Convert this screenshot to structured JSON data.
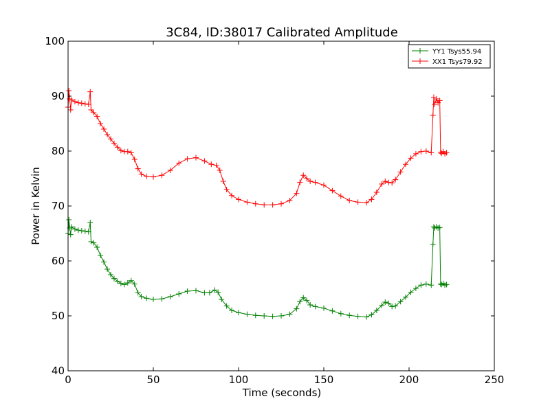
{
  "chart_data": {
    "type": "line",
    "title": "3C84, ID:38017 Calibrated Amplitude",
    "xlabel": "Time (seconds)",
    "ylabel": "Power in Kelvin",
    "xlim": [
      0,
      250
    ],
    "ylim": [
      40,
      100
    ],
    "xticks": [
      "0",
      "50",
      "100",
      "150",
      "200",
      "250"
    ],
    "yticks": [
      "40",
      "50",
      "60",
      "70",
      "80",
      "90",
      "100"
    ],
    "grid": false,
    "legend_position": "top-right",
    "marker": "+",
    "series": [
      {
        "name": "YY1 Tsys55.94",
        "color": "#008000",
        "points": [
          [
            0,
            65.0
          ],
          [
            0.5,
            67.5
          ],
          [
            1,
            66.0
          ],
          [
            1.5,
            64.8
          ],
          [
            2,
            66.2
          ],
          [
            4,
            65.8
          ],
          [
            6,
            65.6
          ],
          [
            8,
            65.5
          ],
          [
            10,
            65.4
          ],
          [
            12,
            65.3
          ],
          [
            13,
            67.0
          ],
          [
            13.5,
            63.5
          ],
          [
            15,
            63.3
          ],
          [
            17,
            62.5
          ],
          [
            19,
            61.0
          ],
          [
            21,
            59.8
          ],
          [
            23,
            58.5
          ],
          [
            25,
            57.5
          ],
          [
            27,
            56.8
          ],
          [
            29,
            56.3
          ],
          [
            31,
            55.9
          ],
          [
            33,
            55.7
          ],
          [
            35,
            56.0
          ],
          [
            37,
            56.4
          ],
          [
            39,
            55.8
          ],
          [
            41,
            54.2
          ],
          [
            43,
            53.5
          ],
          [
            46,
            53.2
          ],
          [
            50,
            53.0
          ],
          [
            55,
            53.1
          ],
          [
            60,
            53.5
          ],
          [
            65,
            54.0
          ],
          [
            70,
            54.5
          ],
          [
            75,
            54.6
          ],
          [
            80,
            54.2
          ],
          [
            83,
            54.2
          ],
          [
            86,
            54.7
          ],
          [
            88,
            54.3
          ],
          [
            90,
            53.0
          ],
          [
            93,
            51.8
          ],
          [
            96,
            51.0
          ],
          [
            100,
            50.6
          ],
          [
            105,
            50.3
          ],
          [
            110,
            50.1
          ],
          [
            115,
            50.0
          ],
          [
            120,
            49.9
          ],
          [
            125,
            50.0
          ],
          [
            130,
            50.3
          ],
          [
            134,
            51.3
          ],
          [
            136,
            52.6
          ],
          [
            138,
            53.3
          ],
          [
            140,
            52.8
          ],
          [
            142,
            52.0
          ],
          [
            145,
            51.7
          ],
          [
            150,
            51.4
          ],
          [
            155,
            50.9
          ],
          [
            160,
            50.4
          ],
          [
            165,
            50.1
          ],
          [
            170,
            49.9
          ],
          [
            175,
            49.8
          ],
          [
            178,
            50.2
          ],
          [
            181,
            51.0
          ],
          [
            184,
            51.9
          ],
          [
            186,
            52.5
          ],
          [
            188,
            52.3
          ],
          [
            190,
            51.7
          ],
          [
            192,
            51.8
          ],
          [
            195,
            52.6
          ],
          [
            198,
            53.4
          ],
          [
            201,
            54.3
          ],
          [
            204,
            55.0
          ],
          [
            207,
            55.6
          ],
          [
            210,
            55.8
          ],
          [
            213,
            55.6
          ],
          [
            214,
            63.0
          ],
          [
            214.5,
            66.2
          ],
          [
            215,
            66.0
          ],
          [
            216,
            66.2
          ],
          [
            217,
            66.0
          ],
          [
            218,
            66.1
          ],
          [
            218.5,
            55.8
          ],
          [
            219,
            55.7
          ],
          [
            220,
            55.9
          ],
          [
            221,
            55.6
          ],
          [
            222,
            55.7
          ]
        ]
      },
      {
        "name": "XX1 Tsys79.92",
        "color": "#ff0000",
        "points": [
          [
            0,
            88.0
          ],
          [
            0.5,
            91.0
          ],
          [
            1,
            89.5
          ],
          [
            1.5,
            87.5
          ],
          [
            2,
            89.3
          ],
          [
            4,
            89.0
          ],
          [
            6,
            88.8
          ],
          [
            8,
            88.7
          ],
          [
            10,
            88.6
          ],
          [
            12,
            88.5
          ],
          [
            13,
            90.8
          ],
          [
            13.5,
            87.5
          ],
          [
            15,
            87.0
          ],
          [
            17,
            86.3
          ],
          [
            19,
            85.0
          ],
          [
            21,
            84.0
          ],
          [
            23,
            83.0
          ],
          [
            25,
            82.2
          ],
          [
            27,
            81.4
          ],
          [
            29,
            80.7
          ],
          [
            31,
            80.1
          ],
          [
            33,
            79.9
          ],
          [
            35,
            79.9
          ],
          [
            37,
            79.7
          ],
          [
            39,
            78.5
          ],
          [
            41,
            76.8
          ],
          [
            43,
            75.8
          ],
          [
            46,
            75.4
          ],
          [
            50,
            75.3
          ],
          [
            55,
            75.6
          ],
          [
            60,
            76.5
          ],
          [
            65,
            77.8
          ],
          [
            70,
            78.6
          ],
          [
            75,
            78.8
          ],
          [
            80,
            78.2
          ],
          [
            84,
            77.6
          ],
          [
            87,
            77.4
          ],
          [
            89,
            76.5
          ],
          [
            91,
            74.5
          ],
          [
            93,
            73.0
          ],
          [
            96,
            71.9
          ],
          [
            100,
            71.2
          ],
          [
            105,
            70.7
          ],
          [
            110,
            70.4
          ],
          [
            115,
            70.2
          ],
          [
            120,
            70.2
          ],
          [
            125,
            70.4
          ],
          [
            130,
            71.0
          ],
          [
            134,
            72.3
          ],
          [
            136,
            74.3
          ],
          [
            138,
            75.6
          ],
          [
            140,
            75.0
          ],
          [
            142,
            74.5
          ],
          [
            145,
            74.3
          ],
          [
            150,
            73.8
          ],
          [
            155,
            72.8
          ],
          [
            160,
            71.8
          ],
          [
            165,
            71.0
          ],
          [
            170,
            70.7
          ],
          [
            175,
            70.6
          ],
          [
            178,
            71.2
          ],
          [
            181,
            72.5
          ],
          [
            184,
            74.0
          ],
          [
            186,
            74.5
          ],
          [
            188,
            74.3
          ],
          [
            190,
            74.2
          ],
          [
            192,
            74.8
          ],
          [
            195,
            76.2
          ],
          [
            198,
            77.6
          ],
          [
            201,
            78.7
          ],
          [
            204,
            79.5
          ],
          [
            207,
            79.9
          ],
          [
            210,
            80.0
          ],
          [
            213,
            79.7
          ],
          [
            214,
            86.5
          ],
          [
            214.5,
            89.8
          ],
          [
            215,
            88.5
          ],
          [
            216,
            89.5
          ],
          [
            217,
            88.8
          ],
          [
            218,
            89.2
          ],
          [
            218.5,
            79.8
          ],
          [
            219,
            79.6
          ],
          [
            220,
            79.9
          ],
          [
            221,
            79.5
          ],
          [
            222,
            79.7
          ]
        ]
      }
    ]
  }
}
